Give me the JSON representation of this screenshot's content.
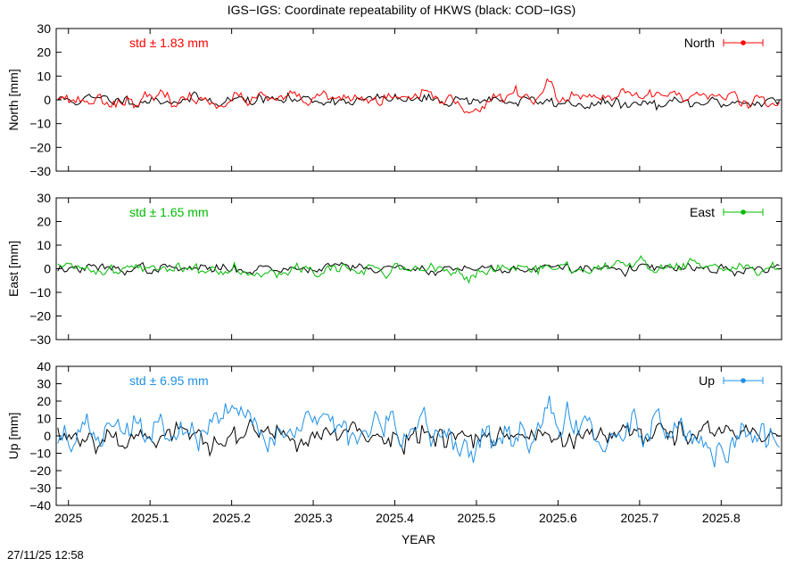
{
  "title": "IGS−IGS: Coordinate repeatability of HKWS (black: COD−IGS)",
  "timestamp": "27/11/25 12:58",
  "chart_data": [
    {
      "type": "line",
      "ylabel": "North [mm]",
      "ylim": [
        -30,
        30
      ],
      "yticks": [
        -30,
        -20,
        -10,
        0,
        10,
        20,
        30
      ],
      "xlim": [
        2024.985,
        2025.874
      ],
      "xticks": [
        2025,
        2025.1,
        2025.2,
        2025.3,
        2025.4,
        2025.5,
        2025.6,
        2025.7,
        2025.8
      ],
      "std_label": "std ± 1.83 mm",
      "legend_label": "North",
      "legend_position": "top-right",
      "color": "#ff0000",
      "black_amp": 1.3,
      "color_amp": 1.6,
      "black_seed": 11,
      "color_seed": 23,
      "color_features": [
        [
          2025.59,
          5.5,
          0.006
        ],
        [
          2025.555,
          2.0,
          0.02
        ],
        [
          2025.5,
          -3.5,
          0.015
        ],
        [
          2025.755,
          2.0,
          0.06
        ],
        [
          2024.99,
          2.5,
          0.005
        ]
      ],
      "black_features": [
        [
          2025.7,
          -2.0,
          0.1
        ],
        [
          2025.5,
          0.5,
          0.02
        ]
      ]
    },
    {
      "type": "line",
      "ylabel": "East [mm]",
      "ylim": [
        -30,
        30
      ],
      "yticks": [
        -30,
        -20,
        -10,
        0,
        10,
        20,
        30
      ],
      "xlim": [
        2024.985,
        2025.874
      ],
      "xticks": [
        2025,
        2025.1,
        2025.2,
        2025.3,
        2025.4,
        2025.5,
        2025.6,
        2025.7,
        2025.8
      ],
      "std_label": "std ± 1.65 mm",
      "legend_label": "East",
      "legend_position": "top-right",
      "color": "#00bb00",
      "black_amp": 1.1,
      "color_amp": 1.5,
      "black_seed": 37,
      "color_seed": 41,
      "color_features": [
        [
          2025.5,
          -3.0,
          0.02
        ],
        [
          2025.35,
          -2.0,
          0.01
        ],
        [
          2025.68,
          2.5,
          0.02
        ],
        [
          2025.77,
          2.5,
          0.01
        ]
      ],
      "black_features": [
        [
          2025.33,
          2.0,
          0.02
        ],
        [
          2025.82,
          -2.0,
          0.01
        ]
      ]
    },
    {
      "type": "line",
      "ylabel": "Up [mm]",
      "ylim": [
        -40,
        40
      ],
      "yticks": [
        -40,
        -30,
        -20,
        -10,
        0,
        10,
        20,
        30,
        40
      ],
      "xlim": [
        2024.985,
        2025.874
      ],
      "xticks": [
        2025,
        2025.1,
        2025.2,
        2025.3,
        2025.4,
        2025.5,
        2025.6,
        2025.7,
        2025.8
      ],
      "xticklabels": [
        "2025",
        "2025.1",
        "2025.2",
        "2025.3",
        "2025.4",
        "2025.5",
        "2025.6",
        "2025.7",
        "2025.8"
      ],
      "xlabel": "YEAR",
      "std_label": "std ± 6.95 mm",
      "legend_label": "Up",
      "legend_position": "top-right",
      "color": "#1e90e8",
      "black_amp": 4.0,
      "color_amp": 5.5,
      "black_seed": 53,
      "color_seed": 67,
      "color_features": [
        [
          2025.3,
          9.0,
          0.02
        ],
        [
          2025.35,
          6.0,
          0.015
        ],
        [
          2025.59,
          16.0,
          0.005
        ],
        [
          2025.61,
          10.0,
          0.01
        ],
        [
          2025.81,
          -12.0,
          0.03
        ],
        [
          2025.5,
          -6.0,
          0.02
        ],
        [
          2025.2,
          4.0,
          0.04
        ],
        [
          2025.1,
          3.0,
          0.04
        ]
      ],
      "black_features": [
        [
          2025.48,
          3.0,
          0.02
        ],
        [
          2025.8,
          1.0,
          0.03
        ]
      ]
    }
  ]
}
